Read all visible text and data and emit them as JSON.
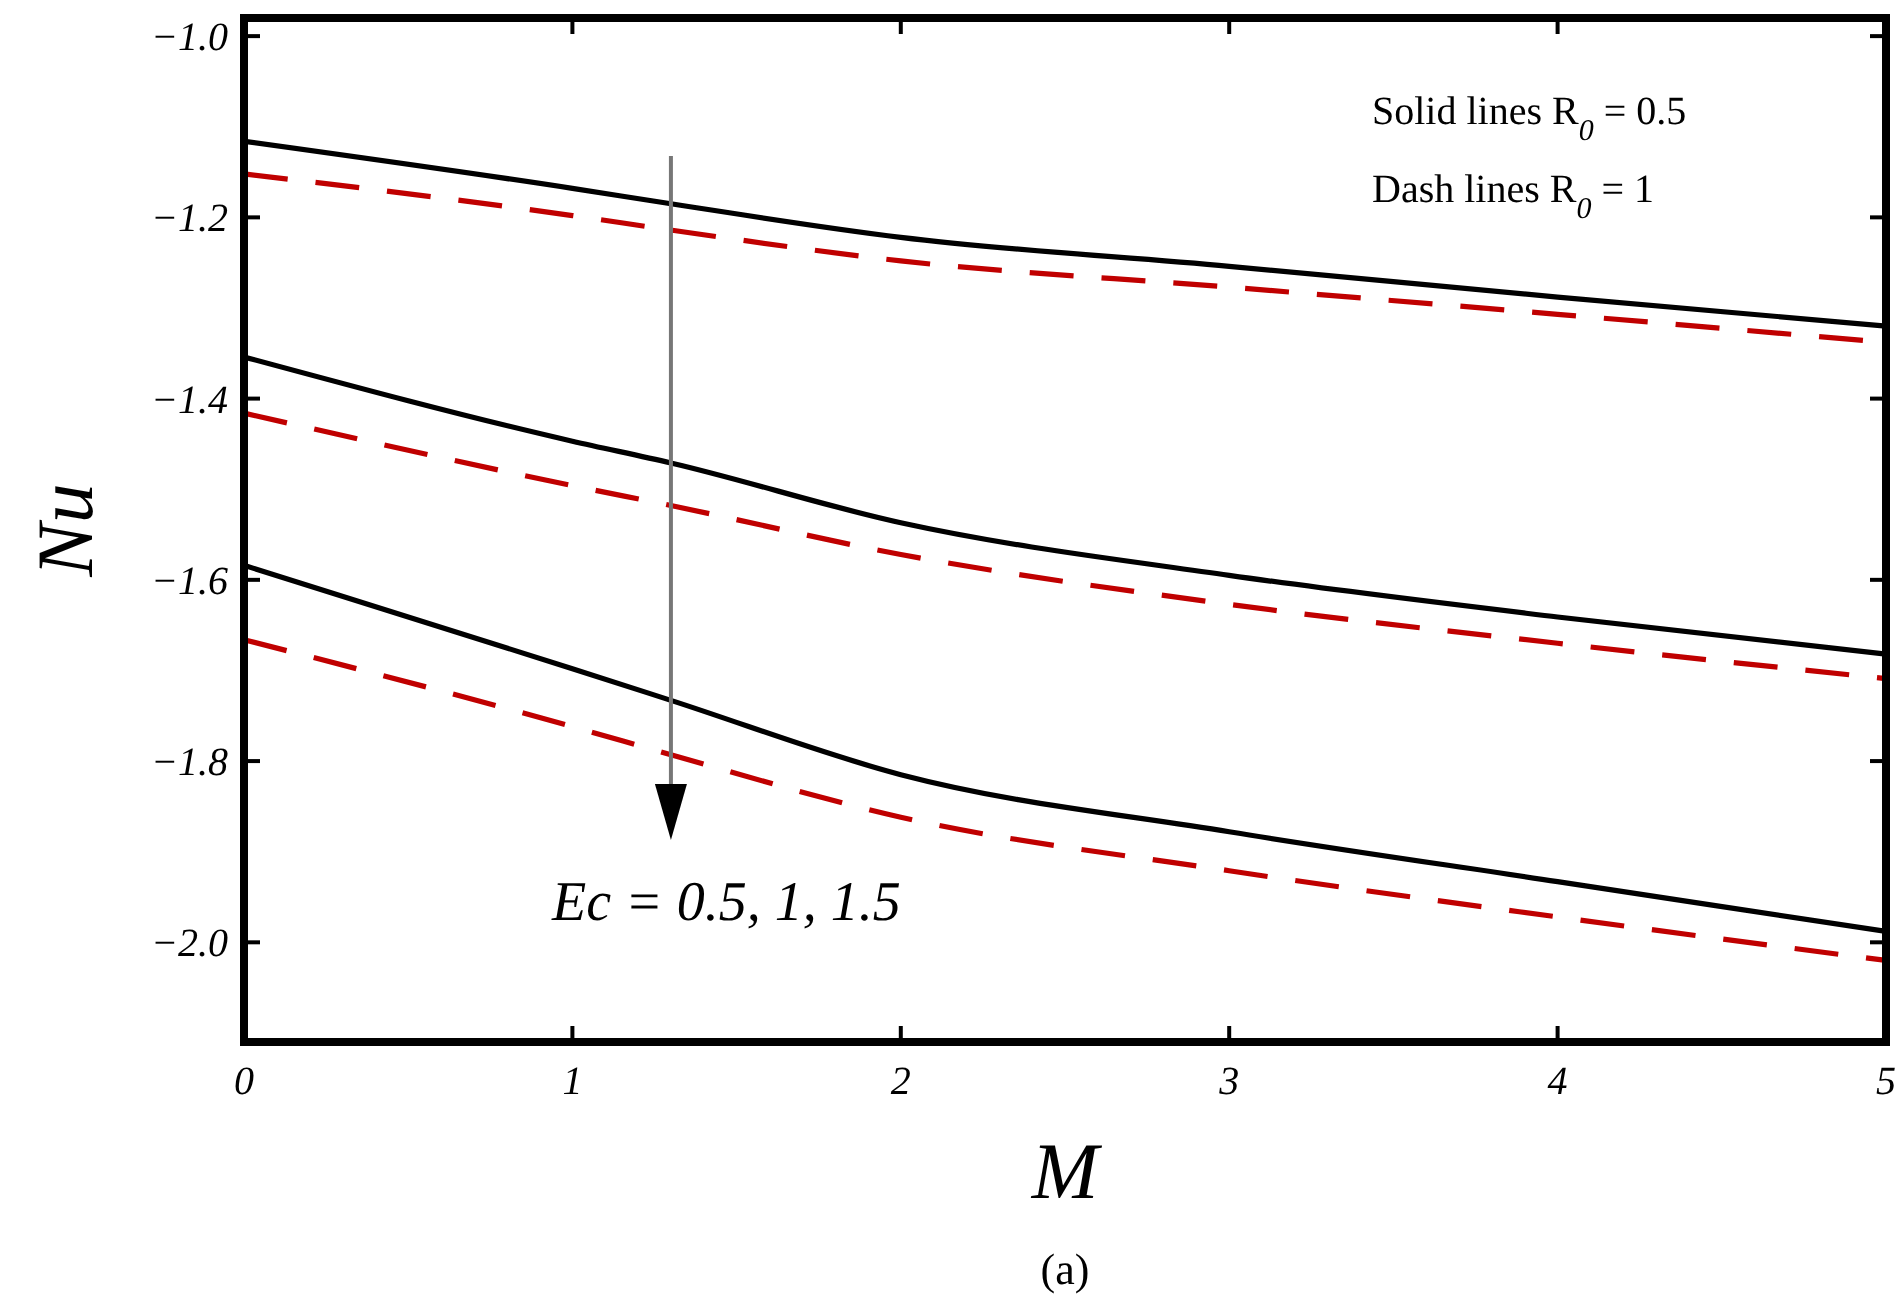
{
  "chart_data": {
    "type": "line",
    "xlabel": "M",
    "ylabel": "Nu",
    "xlim": [
      0,
      5
    ],
    "ylim": [
      -2.11,
      -0.98
    ],
    "xticks": [
      0,
      1,
      2,
      3,
      4,
      5
    ],
    "yticks": [
      {
        "value": -2,
        "label": "−2.0"
      },
      {
        "value": -1.8,
        "label": "−1.8"
      },
      {
        "value": -1.6,
        "label": "−1.6"
      },
      {
        "value": -1.4,
        "label": "−1.4"
      },
      {
        "value": -1.2,
        "label": "−1.2"
      },
      {
        "value": -1,
        "label": "−1.0"
      }
    ],
    "x": [
      0,
      1,
      1.3,
      2,
      3,
      4,
      5
    ],
    "series": [
      {
        "color": "#000000",
        "line_style": "solid",
        "values": [
          -1.116,
          -1.168,
          -1.185,
          -1.222,
          -1.254,
          -1.288,
          -1.32
        ]
      },
      {
        "color": "#c00000",
        "line_style": "dashed",
        "values": [
          -1.152,
          -1.198,
          -1.214,
          -1.248,
          -1.277,
          -1.307,
          -1.338
        ]
      },
      {
        "color": "#000000",
        "line_style": "solid",
        "values": [
          -1.354,
          -1.447,
          -1.471,
          -1.537,
          -1.595,
          -1.641,
          -1.682
        ]
      },
      {
        "color": "#c00000",
        "line_style": "dashed",
        "values": [
          -1.416,
          -1.496,
          -1.518,
          -1.572,
          -1.627,
          -1.67,
          -1.709
        ]
      },
      {
        "color": "#000000",
        "line_style": "solid",
        "values": [
          -1.584,
          -1.698,
          -1.733,
          -1.815,
          -1.878,
          -1.933,
          -1.988
        ]
      },
      {
        "color": "#c00000",
        "line_style": "dashed",
        "values": [
          -1.666,
          -1.762,
          -1.793,
          -1.862,
          -1.921,
          -1.972,
          -2.02
        ]
      }
    ],
    "annotations": [
      "Solid lines R$_{0}$ = 0.5",
      "Dash lines R$_{0}$ = 1",
      "Ec = 0.5, 1, 1.5",
      "(a)"
    ],
    "marker": "none"
  }
}
